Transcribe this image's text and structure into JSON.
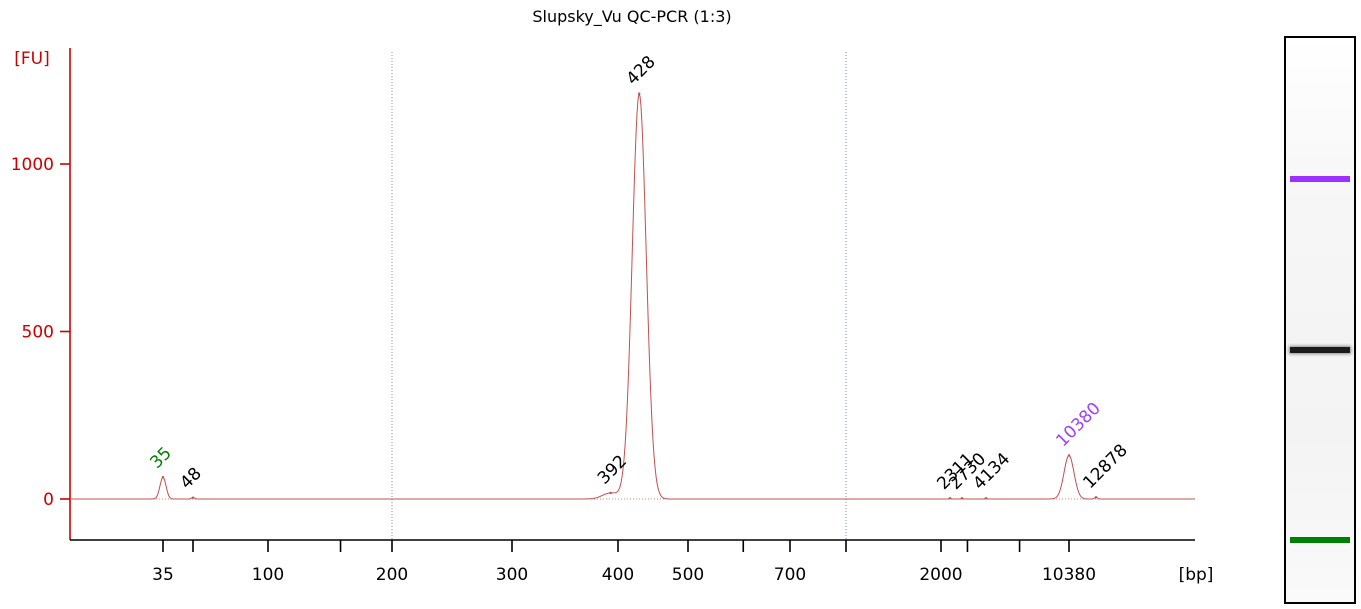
{
  "chart_data": {
    "type": "line",
    "title": "Slupsky_Vu QC-PCR (1:3)",
    "ylabel": "[FU]",
    "xlabel": "[bp]",
    "ylim": [
      -120,
      1340
    ],
    "y_ticks": [
      "0",
      "500",
      "1000"
    ],
    "x_tick_labels": [
      "35",
      "100",
      "200",
      "300",
      "400",
      "500",
      "700",
      "2000",
      "10380"
    ],
    "grid": "dotted vertical lines at 200 bp and ~1000 bp",
    "series": [
      {
        "color": "#c0504d",
        "x": [
          35,
          48,
          392,
          428,
          2311,
          2730,
          4134,
          10380,
          12878
        ],
        "values": [
          65,
          4,
          18,
          1210,
          2,
          2,
          2,
          130,
          5
        ]
      }
    ],
    "peak_labels": [
      {
        "text": "35",
        "bp": 35,
        "fu": 65,
        "color": "#008000"
      },
      {
        "text": "48",
        "bp": 48,
        "fu": 4,
        "color": "#000000"
      },
      {
        "text": "392",
        "bp": 392,
        "fu": 18,
        "color": "#000000"
      },
      {
        "text": "428",
        "bp": 428,
        "fu": 1210,
        "color": "#000000"
      },
      {
        "text": "2311",
        "bp": 2311,
        "fu": 2,
        "color": "#000000"
      },
      {
        "text": "2730",
        "bp": 2730,
        "fu": 2,
        "color": "#000000"
      },
      {
        "text": "4134",
        "bp": 4134,
        "fu": 2,
        "color": "#000000"
      },
      {
        "text": "10380",
        "bp": 10380,
        "fu": 130,
        "color": "#a040ff"
      },
      {
        "text": "12878",
        "bp": 12878,
        "fu": 5,
        "color": "#000000"
      }
    ]
  },
  "gel": {
    "bands": [
      {
        "name": "upper-marker",
        "bp": 10380,
        "color": "#9b30ff"
      },
      {
        "name": "main-product",
        "bp": 428,
        "color": "#1a1a1a"
      },
      {
        "name": "lower-marker",
        "bp": 35,
        "color": "#008000"
      }
    ]
  },
  "colors": {
    "axis": "#cc0000",
    "trace": "#c0504d",
    "grid": "#7f8fa0"
  }
}
